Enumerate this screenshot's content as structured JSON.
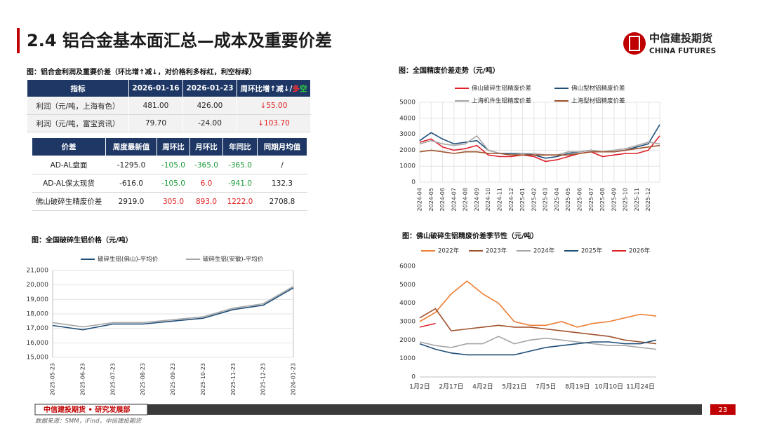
{
  "header": {
    "title": "2.4 铝合金基本面汇总—成本及重要价差",
    "logo_cn": "中信建投期货",
    "logo_en": "CHINA FUTURES"
  },
  "table1": {
    "caption": "图：铝合金利润及重要价差（环比增↑减↓，对价格利多标红，利空标绿）",
    "header": [
      "指标",
      "2026-01-16",
      "2026-01-23",
      [
        "周环比增↑减↓/",
        "多",
        "空"
      ]
    ],
    "header_colors": [
      "#ffffff",
      "#ffffff",
      "#ffffff",
      [
        "#ffffff",
        "#ff3030",
        "#2ecc40"
      ]
    ],
    "rows": [
      [
        "利润（元/吨，上海有色）",
        "481.00",
        "426.00",
        "↓55.00"
      ],
      [
        "利润（元/吨，富宝资讯）",
        "79.70",
        "-24.00",
        "↓103.70"
      ]
    ],
    "colors": [
      [
        "#222222",
        "#222222",
        "#222222",
        "#e02020"
      ],
      [
        "#222222",
        "#222222",
        "#222222",
        "#e02020"
      ]
    ]
  },
  "table2": {
    "header": [
      "价差",
      "周度最新值",
      "周环比",
      "月环比",
      "年同比",
      "同期月均值"
    ],
    "rows": [
      [
        "AD-AL盘面",
        "-1295.0",
        "-105.0",
        "-365.0",
        "-365.0",
        "/"
      ],
      [
        "AD-AL保太现货",
        "-616.0",
        "-105.0",
        "6.0",
        "-941.0",
        "132.3"
      ],
      [
        "佛山破碎生精废价差",
        "2919.0",
        "305.0",
        "893.0",
        "1222.0",
        "2708.8"
      ]
    ],
    "colors": [
      [
        "#222222",
        "#222222",
        "#1a9a3a",
        "#1a9a3a",
        "#1a9a3a",
        "#222222"
      ],
      [
        "#222222",
        "#222222",
        "#1a9a3a",
        "#e02020",
        "#1a9a3a",
        "#222222"
      ],
      [
        "#222222",
        "#222222",
        "#e02020",
        "#e02020",
        "#e02020",
        "#222222"
      ]
    ]
  },
  "chart_data": [
    {
      "type": "line",
      "title": "图：全国精废价差走势（元/吨）",
      "grid": true,
      "categories": [
        "2024-04",
        "2024-05",
        "2024-06",
        "2024-07",
        "2024-08",
        "2024-09",
        "2024-10",
        "2024-11",
        "2024-12",
        "2025-01",
        "2025-02",
        "2025-03",
        "2025-04",
        "2025-05",
        "2025-06",
        "2025-07",
        "2025-08",
        "2025-09",
        "2025-10",
        "2025-11",
        "2025-12",
        null
      ],
      "ylim": [
        0,
        5000
      ],
      "yticks": [
        0,
        1000,
        2000,
        3000,
        4000,
        5000
      ],
      "series": [
        {
          "name": "佛山破碎生铝精废价差",
          "color": "#e0202a",
          "values": [
            2500,
            2700,
            2200,
            2000,
            2100,
            2300,
            1700,
            1600,
            1600,
            1700,
            1600,
            1300,
            1400,
            1600,
            1800,
            1900,
            1600,
            1700,
            1800,
            1800,
            2000,
            2900
          ]
        },
        {
          "name": "佛山型材铝精废价差",
          "color": "#1f4e79",
          "values": [
            2600,
            3100,
            2700,
            2400,
            2500,
            2600,
            2000,
            1800,
            1800,
            1800,
            1700,
            1500,
            1600,
            1800,
            1900,
            2000,
            1900,
            1900,
            2000,
            2200,
            2400,
            3600
          ]
        },
        {
          "name": "上海机件生铝精废价差",
          "color": "#a6a6a6",
          "values": [
            2400,
            2600,
            2400,
            2300,
            2400,
            2900,
            2000,
            1800,
            1700,
            1800,
            1800,
            1700,
            1700,
            1900,
            1900,
            2000,
            1900,
            2000,
            2100,
            2300,
            2500,
            2400
          ]
        },
        {
          "name": "上海型材铝精废价差",
          "color": "#a0522d",
          "values": [
            1900,
            2000,
            1900,
            1800,
            1900,
            1900,
            1800,
            1800,
            1700,
            1700,
            1700,
            1700,
            1700,
            1700,
            1800,
            1900,
            1900,
            1900,
            2000,
            2100,
            2200,
            2300
          ]
        }
      ]
    },
    {
      "type": "line",
      "title": "图：全国破碎生铝价格（元/吨）",
      "grid": true,
      "categories": [
        "2025-05-23",
        "2025-06-23",
        "2025-07-23",
        "2025-08-23",
        "2025-09-23",
        "2025-10-23",
        "2025-11-23",
        "2025-12-23",
        "2026-01-23"
      ],
      "ylim": [
        15000,
        21000
      ],
      "yticks": [
        {
          "value": 15000,
          "label": "15,000"
        },
        {
          "value": 16000,
          "label": "16,000"
        },
        {
          "value": 17000,
          "label": "17,000"
        },
        {
          "value": 18000,
          "label": "18,000"
        },
        {
          "value": 19000,
          "label": "19,000"
        },
        {
          "value": 20000,
          "label": "20,000"
        },
        {
          "value": 21000,
          "label": "21,000"
        }
      ],
      "series": [
        {
          "name": "破碎生铝(佛山)-平均价",
          "color": "#1f4e79",
          "values": [
            17200,
            16900,
            17300,
            17300,
            17500,
            17700,
            18300,
            18600,
            19800
          ]
        },
        {
          "name": "破碎生铝(安徽)-平均价",
          "color": "#a6a6a6",
          "values": [
            17400,
            17100,
            17400,
            17400,
            17600,
            17800,
            18400,
            18700,
            19900
          ]
        }
      ]
    },
    {
      "type": "line",
      "title": "图：佛山破碎生铝精废价差季节性（元/吨）",
      "grid": false,
      "categories": [
        "1月2日",
        null,
        "2月17日",
        null,
        "4月2日",
        null,
        "5月21日",
        null,
        "7月5日",
        null,
        "8月19日",
        null,
        "10月10日",
        null,
        "11月24日",
        null
      ],
      "ylim": [
        0,
        6000
      ],
      "yticks": [
        0,
        1000,
        2000,
        3000,
        4000,
        5000,
        6000
      ],
      "series": [
        {
          "name": "2022年",
          "color": "#ed7d31",
          "values": [
            3000,
            3500,
            4500,
            5200,
            4500,
            4000,
            3000,
            2800,
            2800,
            3000,
            2700,
            2900,
            3000,
            3200,
            3400,
            3300
          ]
        },
        {
          "name": "2023年",
          "color": "#a0522d",
          "values": [
            3200,
            3700,
            2500,
            2600,
            2700,
            2800,
            2700,
            2700,
            2600,
            2500,
            2400,
            2300,
            2200,
            2000,
            1900,
            1800
          ]
        },
        {
          "name": "2024年",
          "color": "#a6a6a6",
          "values": [
            1900,
            1700,
            1600,
            1800,
            1800,
            2200,
            1800,
            2000,
            2100,
            2000,
            1900,
            1800,
            1700,
            1700,
            1600,
            1500
          ]
        },
        {
          "name": "2025年",
          "color": "#1f4e79",
          "values": [
            1800,
            1500,
            1300,
            1200,
            1200,
            1200,
            1200,
            1400,
            1600,
            1700,
            1800,
            1900,
            1900,
            1800,
            1800,
            2000
          ]
        },
        {
          "name": "2026年",
          "color": "#e0202a",
          "values": [
            2700,
            2900,
            null,
            null,
            null,
            null,
            null,
            null,
            null,
            null,
            null,
            null,
            null,
            null,
            null,
            null
          ]
        }
      ]
    }
  ],
  "footer": {
    "org": "中信建投期货 • 研究发展部",
    "page": "23",
    "source": "数据来源：SMM，iFind，中信建投期货"
  }
}
